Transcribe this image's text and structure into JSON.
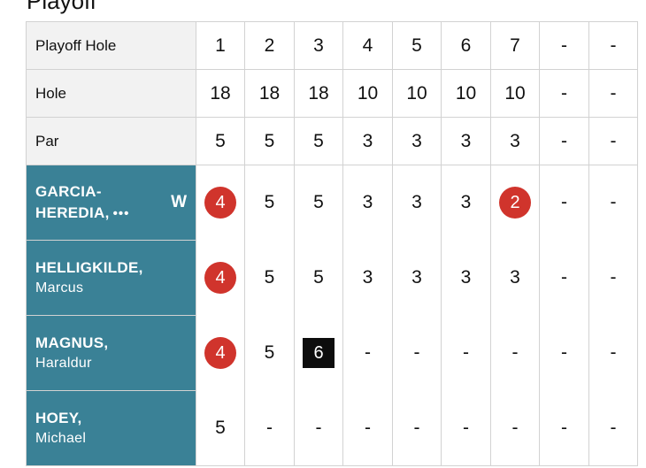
{
  "section_title": "Playoff",
  "header_rows": [
    {
      "label": "Playoff Hole",
      "values": [
        "1",
        "2",
        "3",
        "4",
        "5",
        "6",
        "7",
        "-",
        "-"
      ]
    },
    {
      "label": "Hole",
      "values": [
        "18",
        "18",
        "18",
        "10",
        "10",
        "10",
        "10",
        "-",
        "-"
      ]
    },
    {
      "label": "Par",
      "values": [
        "5",
        "5",
        "5",
        "3",
        "3",
        "3",
        "3",
        "-",
        "-"
      ]
    }
  ],
  "players": [
    {
      "last_name": "GARCIA-",
      "last_name_2": "HEREDIA,",
      "more_icon": "ellipsis-icon",
      "first_name": "",
      "winner_mark": "W",
      "scores": [
        "4",
        "5",
        "5",
        "3",
        "3",
        "3",
        "2",
        "-",
        "-"
      ],
      "score_styles": [
        "birdie",
        "plain",
        "plain",
        "plain",
        "plain",
        "plain",
        "birdie",
        "plain",
        "plain"
      ]
    },
    {
      "last_name": "HELLIGKILDE,",
      "first_name": "Marcus",
      "winner_mark": "",
      "scores": [
        "4",
        "5",
        "5",
        "3",
        "3",
        "3",
        "3",
        "-",
        "-"
      ],
      "score_styles": [
        "birdie",
        "plain",
        "plain",
        "plain",
        "plain",
        "plain",
        "plain",
        "plain",
        "plain"
      ]
    },
    {
      "last_name": "MAGNUS,",
      "first_name": "Haraldur",
      "winner_mark": "",
      "scores": [
        "4",
        "5",
        "6",
        "-",
        "-",
        "-",
        "-",
        "-",
        "-"
      ],
      "score_styles": [
        "birdie",
        "plain",
        "bogey",
        "plain",
        "plain",
        "plain",
        "plain",
        "plain",
        "plain"
      ]
    },
    {
      "last_name": "HOEY,",
      "first_name": "Michael",
      "winner_mark": "",
      "scores": [
        "5",
        "-",
        "-",
        "-",
        "-",
        "-",
        "-",
        "-",
        "-"
      ],
      "score_styles": [
        "plain",
        "plain",
        "plain",
        "plain",
        "plain",
        "plain",
        "plain",
        "plain",
        "plain"
      ]
    }
  ],
  "colors": {
    "player_cell_bg": "#3a8196",
    "birdie": "#d0342c",
    "bogey": "#0d0d0d"
  }
}
